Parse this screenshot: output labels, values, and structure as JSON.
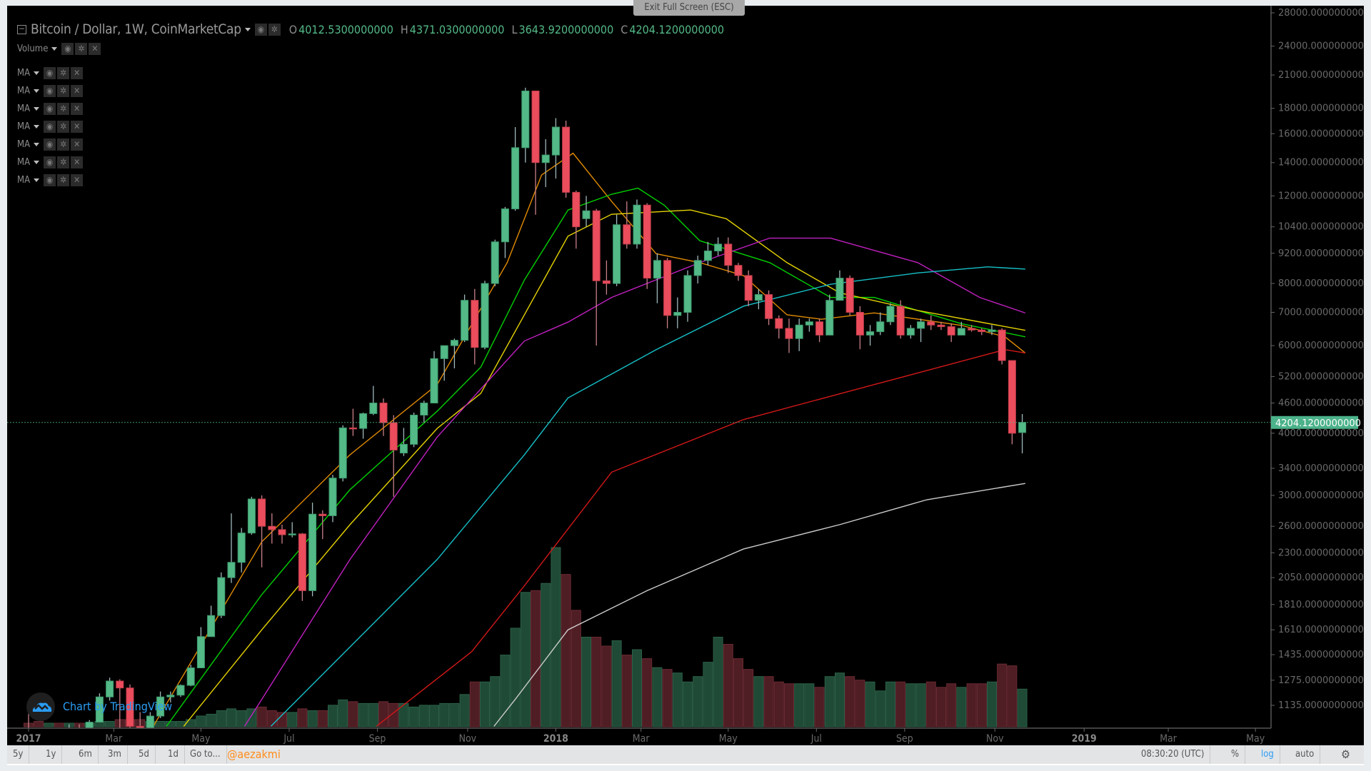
{
  "header": {
    "title": "Bitcoin / Dollar, 1W, CoinMarketCap",
    "ohlc": [
      {
        "key": "O",
        "value": "4012.5300000000"
      },
      {
        "key": "H",
        "value": "4371.0300000000"
      },
      {
        "key": "L",
        "value": "3643.9200000000"
      },
      {
        "key": "C",
        "value": "4204.1200000000"
      }
    ],
    "studies": [
      "Volume",
      "MA",
      "MA",
      "MA",
      "MA",
      "MA",
      "MA",
      "MA"
    ]
  },
  "tooltip": "Exit Full Screen (ESC)",
  "branding": {
    "text": "Chart by TradingView"
  },
  "last_price_label": "4204.1200000000",
  "colors": {
    "up": "#53b987",
    "down": "#eb4d5c",
    "vol_up": "#1f4a36",
    "vol_down": "#4f1d24",
    "accent": "#2a9df4",
    "handle": "#ff8c1a"
  },
  "toolbar": {
    "ranges": [
      "5y",
      "1y",
      "6m",
      "3m",
      "5d",
      "1d"
    ],
    "goto": "Go to...",
    "handle": "@aezakmi",
    "time": "08:30:20 (UTC)",
    "percent": "%",
    "log": "log",
    "auto": "auto"
  },
  "chart_data": {
    "type": "candlestick",
    "interval": "1W",
    "scale": "log",
    "ylim": [
      1000,
      28000
    ],
    "y_ticks": [
      "28000.0000000000",
      "24000.0000000000",
      "21000.0000000000",
      "18000.0000000000",
      "16000.0000000000",
      "14000.0000000000",
      "12000.0000000000",
      "10400.0000000000",
      "9200.0000000000",
      "8000.0000000000",
      "7000.0000000000",
      "6000.0000000000",
      "5200.0000000000",
      "4600.0000000000",
      "4000.0000000000",
      "3400.0000000000",
      "3000.0000000000",
      "2600.0000000000",
      "2300.0000000000",
      "2050.0000000000",
      "1810.0000000000",
      "1610.0000000000",
      "1435.0000000000",
      "1275.0000000000",
      "1135.0000000000"
    ],
    "x_ticks": [
      {
        "label": "2017",
        "week": 0
      },
      {
        "label": "Mar",
        "week": 8.4
      },
      {
        "label": "May",
        "week": 17
      },
      {
        "label": "Jul",
        "week": 25.7
      },
      {
        "label": "Sep",
        "week": 34.4
      },
      {
        "label": "Nov",
        "week": 43.3
      },
      {
        "label": "2018",
        "week": 52
      },
      {
        "label": "Mar",
        "week": 60.4
      },
      {
        "label": "May",
        "week": 69
      },
      {
        "label": "Jul",
        "week": 77.7
      },
      {
        "label": "Sep",
        "week": 86.4
      },
      {
        "label": "Nov",
        "week": 95.3
      },
      {
        "label": "2019",
        "week": 104.1
      },
      {
        "label": "Mar",
        "week": 112.4
      },
      {
        "label": "May",
        "week": 121
      }
    ],
    "candles_ohlc": [
      [
        963,
        1153,
        812,
        908
      ],
      [
        908,
        913,
        755,
        818
      ],
      [
        818,
        940,
        810,
        924
      ],
      [
        924,
        925,
        880,
        913
      ],
      [
        913,
        1040,
        910,
        1018
      ],
      [
        1018,
        1040,
        950,
        1007
      ],
      [
        1007,
        1060,
        995,
        1050
      ],
      [
        1050,
        1200,
        1050,
        1180
      ],
      [
        1180,
        1290,
        1160,
        1270
      ],
      [
        1270,
        1280,
        1000,
        1230
      ],
      [
        1230,
        1250,
        1020,
        1030
      ],
      [
        1030,
        1100,
        890,
        965
      ],
      [
        965,
        1100,
        940,
        1080
      ],
      [
        1080,
        1210,
        1070,
        1180
      ],
      [
        1180,
        1210,
        1150,
        1190
      ],
      [
        1190,
        1250,
        1180,
        1245
      ],
      [
        1245,
        1370,
        1240,
        1350
      ],
      [
        1350,
        1630,
        1350,
        1560
      ],
      [
        1560,
        1800,
        1560,
        1720
      ],
      [
        1720,
        2100,
        1700,
        2050
      ],
      [
        2050,
        2760,
        2000,
        2200
      ],
      [
        2200,
        2580,
        2100,
        2520
      ],
      [
        2520,
        2980,
        2500,
        2950
      ],
      [
        2950,
        3000,
        2150,
        2600
      ],
      [
        2600,
        2760,
        2400,
        2560
      ],
      [
        2560,
        2620,
        2400,
        2500
      ],
      [
        2500,
        2650,
        2470,
        2510
      ],
      [
        2510,
        2520,
        1840,
        1930
      ],
      [
        1930,
        2900,
        1880,
        2750
      ],
      [
        2750,
        2800,
        2450,
        2730
      ],
      [
        2730,
        3300,
        2650,
        3250
      ],
      [
        3250,
        4150,
        3200,
        4100
      ],
      [
        4100,
        4480,
        3950,
        4090
      ],
      [
        4090,
        4400,
        3900,
        4380
      ],
      [
        4380,
        4980,
        4350,
        4600
      ],
      [
        4600,
        4700,
        3950,
        4200
      ],
      [
        4200,
        4350,
        2980,
        3700
      ],
      [
        3650,
        4100,
        3600,
        3800
      ],
      [
        3800,
        4400,
        3750,
        4350
      ],
      [
        4350,
        4650,
        4200,
        4600
      ],
      [
        4600,
        5850,
        4600,
        5650
      ],
      [
        5650,
        6000,
        5100,
        6000
      ],
      [
        6000,
        6200,
        5400,
        6150
      ],
      [
        6150,
        7600,
        6100,
        7400
      ],
      [
        7400,
        7800,
        5500,
        5950
      ],
      [
        5950,
        8100,
        5900,
        8000
      ],
      [
        8000,
        9800,
        7900,
        9700
      ],
      [
        9700,
        11400,
        9000,
        11300
      ],
      [
        11300,
        16500,
        11200,
        15000
      ],
      [
        15000,
        19800,
        14000,
        19500
      ],
      [
        19500,
        19500,
        11000,
        14000
      ],
      [
        14000,
        15600,
        12500,
        14500
      ],
      [
        14500,
        17200,
        13000,
        16500
      ],
      [
        16500,
        17000,
        11900,
        12200
      ],
      [
        12200,
        12300,
        9400,
        10400
      ],
      [
        10800,
        12000,
        10400,
        11200
      ],
      [
        11200,
        11300,
        6000,
        8100
      ],
      [
        8100,
        8900,
        7600,
        8000
      ],
      [
        8000,
        11000,
        7900,
        10500
      ],
      [
        10500,
        11700,
        9400,
        9600
      ],
      [
        9600,
        11800,
        9400,
        11500
      ],
      [
        11500,
        11600,
        7800,
        8200
      ],
      [
        8200,
        9200,
        7300,
        8900
      ],
      [
        8900,
        9000,
        6500,
        6900
      ],
      [
        6900,
        7500,
        6500,
        7000
      ],
      [
        7000,
        8500,
        6700,
        8300
      ],
      [
        8300,
        9100,
        8000,
        8900
      ],
      [
        8900,
        9700,
        8700,
        9300
      ],
      [
        9300,
        9900,
        9100,
        9600
      ],
      [
        9600,
        9900,
        8400,
        8700
      ],
      [
        8700,
        8800,
        8100,
        8300
      ],
      [
        8300,
        8500,
        7200,
        7400
      ],
      [
        7400,
        7800,
        7100,
        7600
      ],
      [
        7600,
        7750,
        6600,
        6800
      ],
      [
        6800,
        6900,
        6200,
        6500
      ],
      [
        6500,
        6800,
        5800,
        6200
      ],
      [
        6200,
        6800,
        5850,
        6600
      ],
      [
        6600,
        6800,
        6400,
        6700
      ],
      [
        6700,
        6800,
        6100,
        6300
      ],
      [
        6300,
        7600,
        6300,
        7400
      ],
      [
        7400,
        8500,
        7400,
        8200
      ],
      [
        8200,
        8300,
        6900,
        7000
      ],
      [
        7000,
        7200,
        5900,
        6300
      ],
      [
        6300,
        6600,
        6000,
        6400
      ],
      [
        6400,
        7000,
        6300,
        6700
      ],
      [
        6700,
        7300,
        6600,
        7200
      ],
      [
        7200,
        7400,
        6200,
        6300
      ],
      [
        6300,
        6600,
        6200,
        6500
      ],
      [
        6500,
        6800,
        6100,
        6700
      ],
      [
        6700,
        6900,
        6450,
        6600
      ],
      [
        6600,
        6700,
        6450,
        6550
      ],
      [
        6550,
        6650,
        6100,
        6300
      ],
      [
        6300,
        6700,
        6300,
        6500
      ],
      [
        6500,
        6600,
        6400,
        6450
      ],
      [
        6450,
        6500,
        6300,
        6400
      ],
      [
        6400,
        6600,
        6300,
        6450
      ],
      [
        6450,
        6500,
        5500,
        5600
      ],
      [
        5600,
        5600,
        3800,
        4000
      ],
      [
        4012.53,
        4371.03,
        3643.92,
        4204.12
      ]
    ],
    "volume_relative": [
      2,
      3,
      2,
      2,
      2,
      2,
      2,
      3,
      3,
      4,
      4,
      4,
      3,
      3,
      3,
      3,
      4,
      6,
      7,
      9,
      10,
      9,
      10,
      11,
      9,
      8,
      8,
      10,
      9,
      9,
      12,
      15,
      14,
      13,
      13,
      14,
      13,
      13,
      11,
      12,
      12,
      13,
      13,
      18,
      25,
      25,
      28,
      40,
      55,
      75,
      76,
      80,
      100,
      85,
      65,
      50,
      50,
      45,
      48,
      40,
      43,
      38,
      33,
      32,
      30,
      25,
      28,
      36,
      50,
      46,
      38,
      32,
      28,
      28,
      25,
      24,
      24,
      24,
      22,
      28,
      30,
      28,
      26,
      25,
      20,
      25,
      25,
      24,
      24,
      25,
      22,
      24,
      22,
      24,
      24,
      25,
      35,
      34,
      21
    ],
    "moving_averages": [
      {
        "color": "#e08a00",
        "points": [
          [
            12.3,
            1030
          ],
          [
            23,
            2420
          ],
          [
            31.7,
            3620
          ],
          [
            40.3,
            5010
          ],
          [
            47.2,
            8810
          ],
          [
            50.6,
            13220
          ],
          [
            53.7,
            14620
          ],
          [
            57.5,
            11700
          ],
          [
            61.9,
            9180
          ],
          [
            66.2,
            8810
          ],
          [
            70.5,
            8300
          ],
          [
            74.8,
            6920
          ],
          [
            78.2,
            6780
          ],
          [
            83.4,
            6980
          ],
          [
            92,
            6590
          ],
          [
            96.3,
            6250
          ],
          [
            98.3,
            5800
          ]
        ]
      },
      {
        "color": "#00d000",
        "points": [
          [
            13.6,
            1030
          ],
          [
            23,
            1895
          ],
          [
            31.7,
            3080
          ],
          [
            40.3,
            4430
          ],
          [
            44.6,
            5430
          ],
          [
            48.9,
            8130
          ],
          [
            53.2,
            11240
          ],
          [
            57.5,
            12090
          ],
          [
            60.1,
            12440
          ],
          [
            62.7,
            11490
          ],
          [
            66.2,
            9750
          ],
          [
            73.1,
            8810
          ],
          [
            79.1,
            7500
          ],
          [
            83.4,
            7500
          ],
          [
            92,
            6640
          ],
          [
            98.3,
            6250
          ]
        ]
      },
      {
        "color": "#e6d300",
        "points": [
          [
            15.3,
            1030
          ],
          [
            23,
            1610
          ],
          [
            31.7,
            2620
          ],
          [
            40.3,
            4090
          ],
          [
            44.6,
            4810
          ],
          [
            48.9,
            6920
          ],
          [
            53.2,
            9960
          ],
          [
            57.5,
            11020
          ],
          [
            65.3,
            11240
          ],
          [
            68.8,
            10800
          ],
          [
            74.8,
            8810
          ],
          [
            80,
            7660
          ],
          [
            87.7,
            7060
          ],
          [
            98.3,
            6440
          ]
        ]
      },
      {
        "color": "#c020c0",
        "points": [
          [
            21.3,
            1030
          ],
          [
            23,
            1167
          ],
          [
            31.7,
            2230
          ],
          [
            40.3,
            3930
          ],
          [
            48.9,
            6130
          ],
          [
            53.2,
            6690
          ],
          [
            57.5,
            7500
          ],
          [
            66.2,
            8810
          ],
          [
            73.1,
            9870
          ],
          [
            79.1,
            9870
          ],
          [
            87.7,
            8810
          ],
          [
            93.8,
            7500
          ],
          [
            98.3,
            6980
          ]
        ]
      },
      {
        "color": "#16c0c8",
        "points": [
          [
            23.9,
            1030
          ],
          [
            31.7,
            1487
          ],
          [
            40.3,
            2230
          ],
          [
            48.9,
            3620
          ],
          [
            53.2,
            4710
          ],
          [
            61.9,
            5890
          ],
          [
            70.5,
            7200
          ],
          [
            79.1,
            7970
          ],
          [
            87.7,
            8400
          ],
          [
            94.6,
            8640
          ],
          [
            98.3,
            8550
          ]
        ]
      },
      {
        "color": "#d01818",
        "points": [
          [
            34.3,
            1030
          ],
          [
            43.7,
            1455
          ],
          [
            48.9,
            1975
          ],
          [
            57.5,
            3340
          ],
          [
            70.5,
            4260
          ],
          [
            83.4,
            5010
          ],
          [
            96.3,
            5890
          ],
          [
            98.3,
            5800
          ]
        ]
      },
      {
        "color": "#cccccc",
        "points": [
          [
            45.9,
            1030
          ],
          [
            48,
            1167
          ],
          [
            53.2,
            1610
          ],
          [
            61,
            1930
          ],
          [
            70.5,
            2340
          ],
          [
            80,
            2620
          ],
          [
            88.6,
            2940
          ],
          [
            98.3,
            3170
          ]
        ]
      }
    ]
  }
}
